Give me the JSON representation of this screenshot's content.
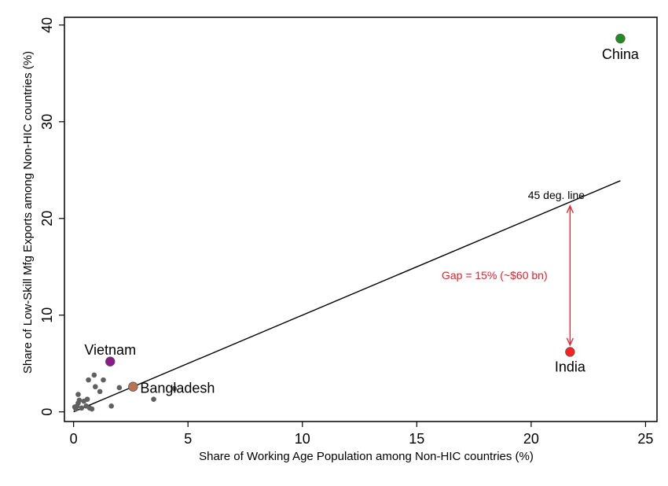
{
  "chart_data": {
    "type": "scatter",
    "xlabel": "Share of Working Age Population among Non-HIC countries (%)",
    "ylabel": "Share of Low-Skill Mfg Exports among Non-HIC countries (%)",
    "xlim": [
      -0.4,
      25.5
    ],
    "ylim": [
      -1,
      40.8
    ],
    "xticks": [
      0,
      5,
      10,
      15,
      20,
      25
    ],
    "yticks": [
      0,
      10,
      20,
      30,
      40
    ],
    "grid": false,
    "highlighted_points": [
      {
        "label": "China",
        "x": 23.9,
        "y": 38.6,
        "color": "#228B22"
      },
      {
        "label": "India",
        "x": 21.7,
        "y": 6.2,
        "color": "#FF2020"
      },
      {
        "label": "Vietnam",
        "x": 1.6,
        "y": 5.2,
        "color": "#8B1A8B"
      },
      {
        "label": "Bangladesh",
        "x": 2.6,
        "y": 2.6,
        "color": "#B87355"
      }
    ],
    "other_points": [
      {
        "x": 0.1,
        "y": 0.3
      },
      {
        "x": 0.15,
        "y": 0.6
      },
      {
        "x": 0.2,
        "y": 0.9
      },
      {
        "x": 0.25,
        "y": 1.2
      },
      {
        "x": 0.2,
        "y": 1.8
      },
      {
        "x": 0.35,
        "y": 0.4
      },
      {
        "x": 0.45,
        "y": 1.1
      },
      {
        "x": 0.55,
        "y": 0.6
      },
      {
        "x": 0.6,
        "y": 1.3
      },
      {
        "x": 0.65,
        "y": 3.3
      },
      {
        "x": 0.7,
        "y": 0.4
      },
      {
        "x": 0.8,
        "y": 0.3
      },
      {
        "x": 0.9,
        "y": 3.8
      },
      {
        "x": 0.95,
        "y": 2.6
      },
      {
        "x": 1.15,
        "y": 2.1
      },
      {
        "x": 1.3,
        "y": 3.3
      },
      {
        "x": 1.65,
        "y": 0.6
      },
      {
        "x": 2.0,
        "y": 2.5
      },
      {
        "x": 3.5,
        "y": 1.3
      },
      {
        "x": 4.4,
        "y": 2.4
      },
      {
        "x": 0.05,
        "y": 0.5
      }
    ],
    "reference_line": {
      "label": "45 deg. line",
      "from": [
        0,
        0
      ],
      "to": [
        23.9,
        23.9
      ]
    },
    "gap_annotation": {
      "label": "Gap = 15% (~$60 bn)",
      "x": 21.7,
      "y_from": 6.9,
      "y_to": 21.3,
      "color": "#E8202A"
    },
    "other_point_color": "#606060"
  }
}
